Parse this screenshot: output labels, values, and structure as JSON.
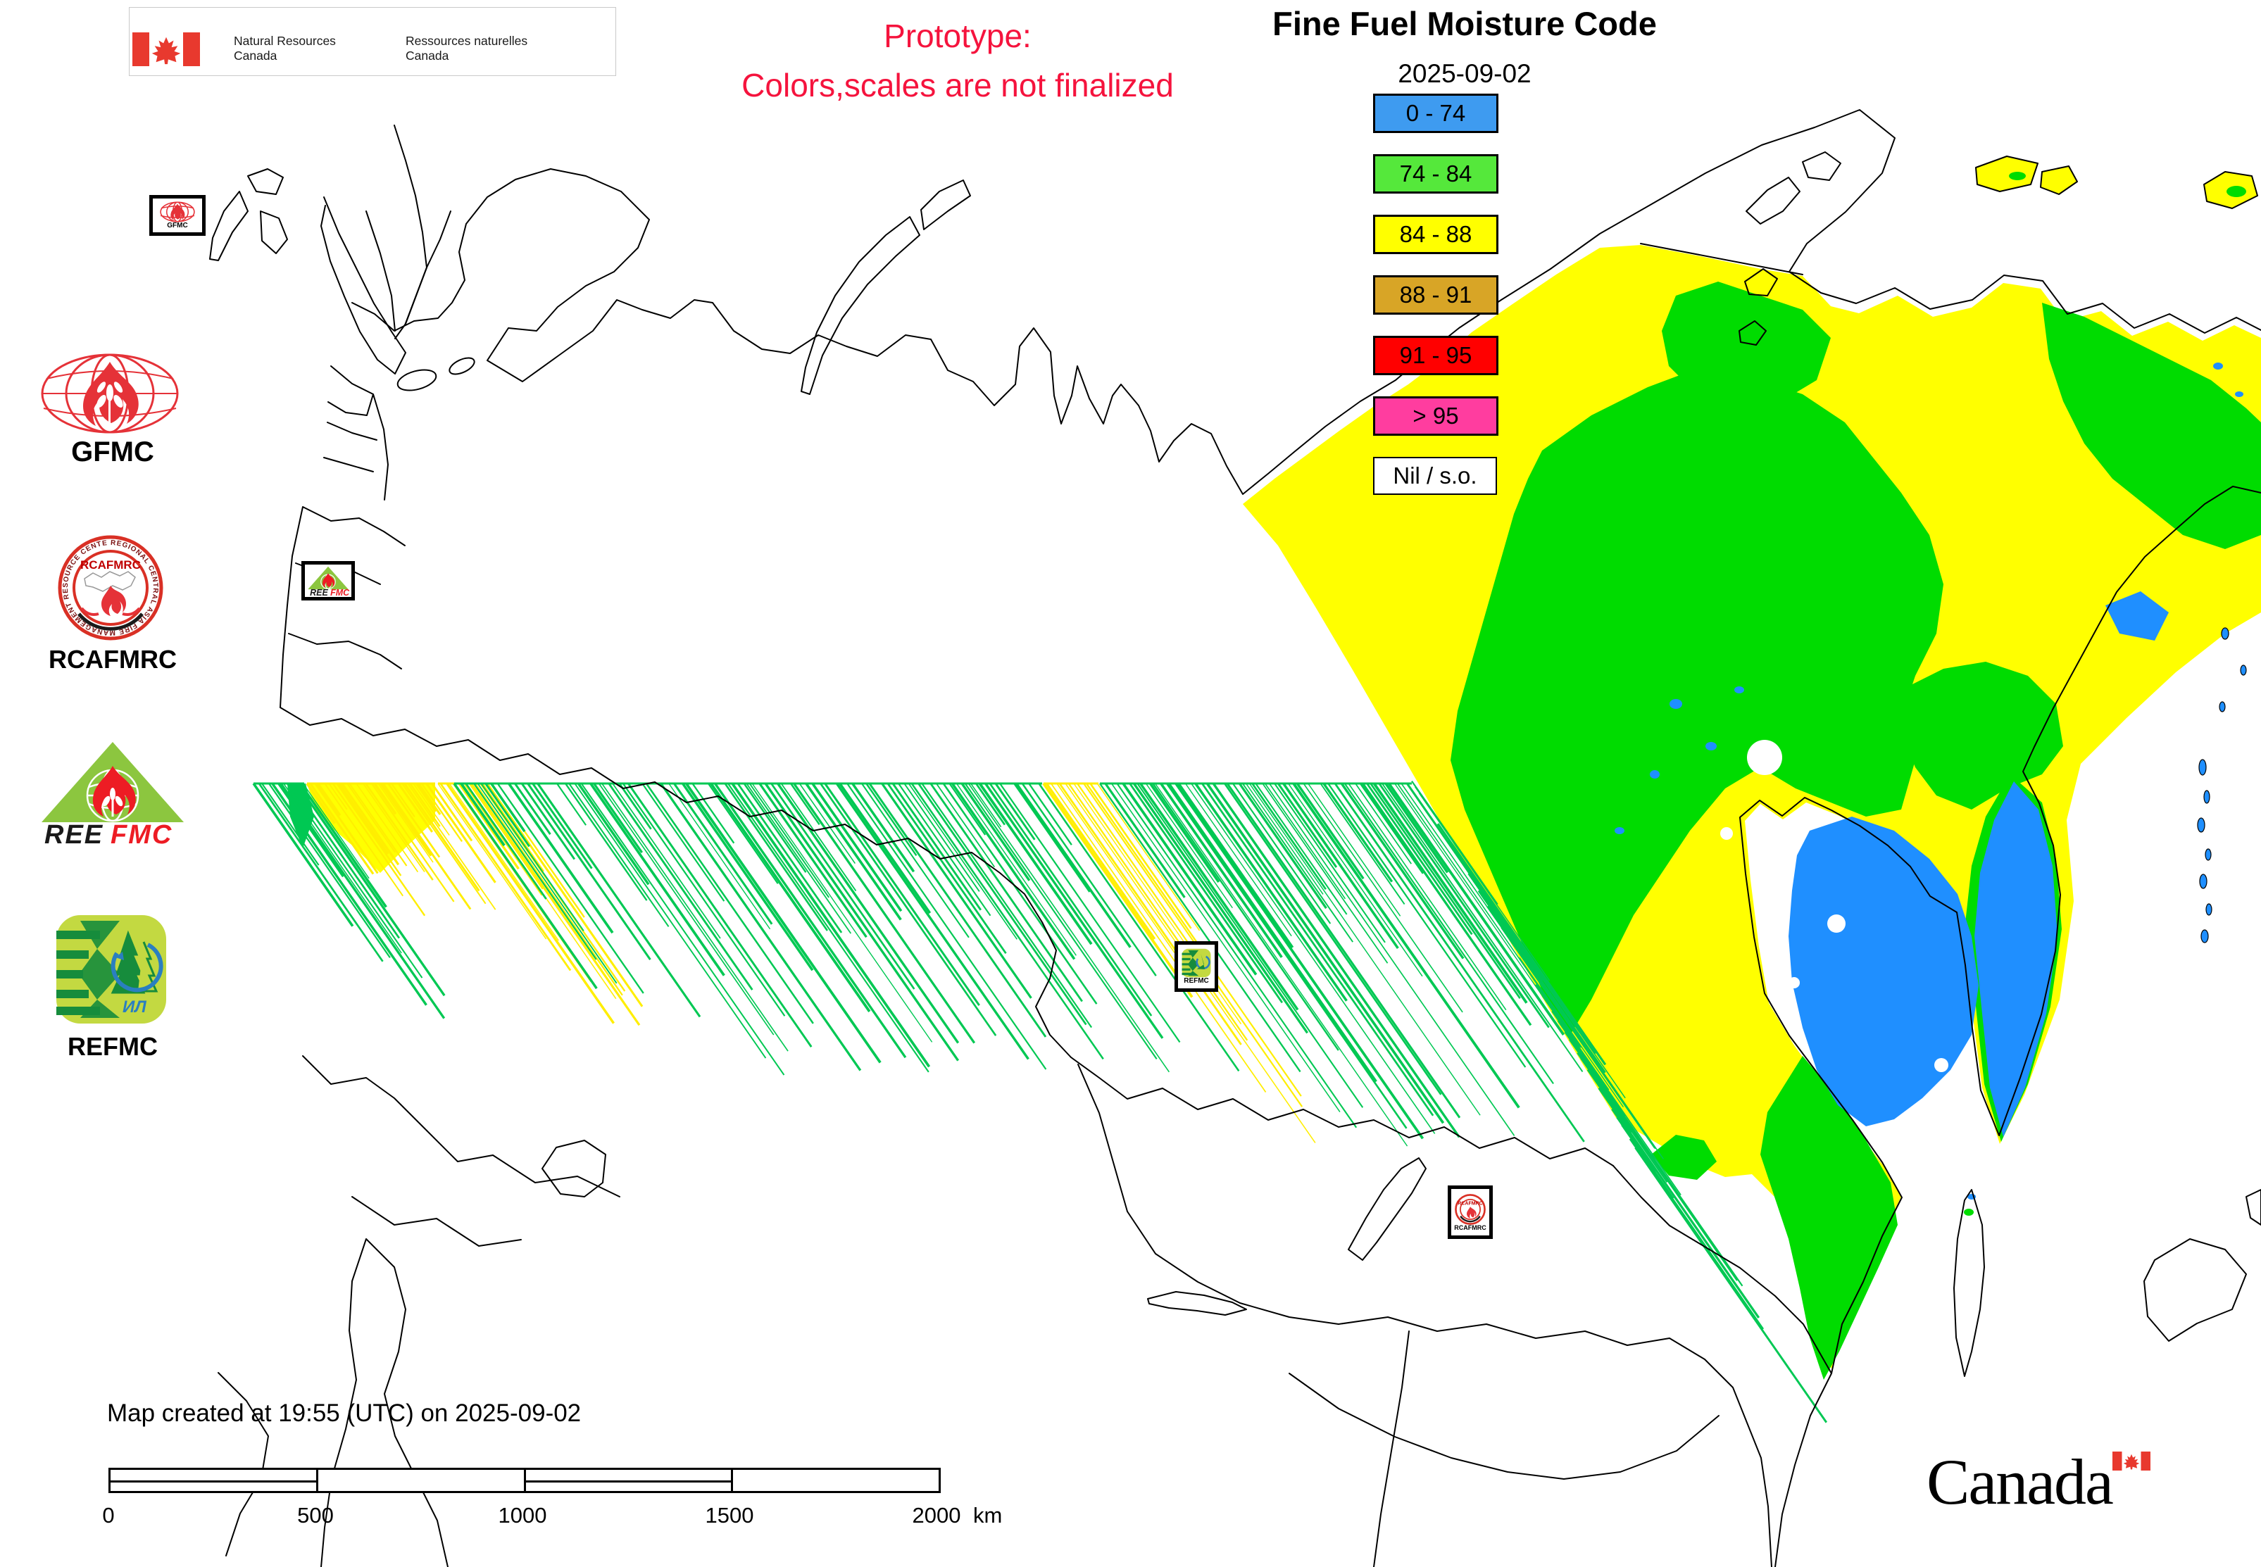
{
  "header": {
    "nrcan_en_line1": "Natural Resources",
    "nrcan_en_line2": "Canada",
    "nrcan_fr_line1": "Ressources naturelles",
    "nrcan_fr_line2": "Canada",
    "prototype_line1": "Prototype:",
    "prototype_line2": "Colors,scales are not finalized",
    "title": "Fine Fuel Moisture Code",
    "date": "2025-09-02"
  },
  "legend": {
    "classes": [
      {
        "label": "0 - 74",
        "color": "#3e9bf0"
      },
      {
        "label": "74 - 84",
        "color": "#55e83b"
      },
      {
        "label": "84 - 88",
        "color": "#ffff00"
      },
      {
        "label": "88 - 91",
        "color": "#d8a526"
      },
      {
        "label": "91 - 95",
        "color": "#ff0000"
      },
      {
        "label": "> 95",
        "color": "#ff3d9f"
      },
      {
        "label": "Nil / s.o.",
        "color": "#ffffff"
      }
    ]
  },
  "logos": {
    "gfmc": {
      "label": "GFMC"
    },
    "rcafmrc": {
      "label": "RCAFMRC",
      "ring_text": "REGIONAL CENTRAL ASIA FIRE MANAGEMENT RESOURCE CENTER",
      "center_text": "RCAFMRC"
    },
    "reefmc": {
      "wordmark_black": "REE",
      "wordmark_red": "FMC"
    },
    "refmc": {
      "label": "REFMC",
      "inner_text": "ИЛ"
    }
  },
  "map": {
    "colors": {
      "yellow": "#ffff00",
      "green": "#00dc00",
      "blue": "#1f8fff",
      "streak_green": "#00c853",
      "streak_yellow": "#ffee00",
      "outline": "#000000"
    }
  },
  "footer": {
    "created_text": "Map created at 19:55 (UTC) on 2025-09-02",
    "scale_ticks": [
      "0",
      "500",
      "1000",
      "1500",
      "2000"
    ],
    "scale_unit": "km",
    "wordmark": "Canada"
  }
}
